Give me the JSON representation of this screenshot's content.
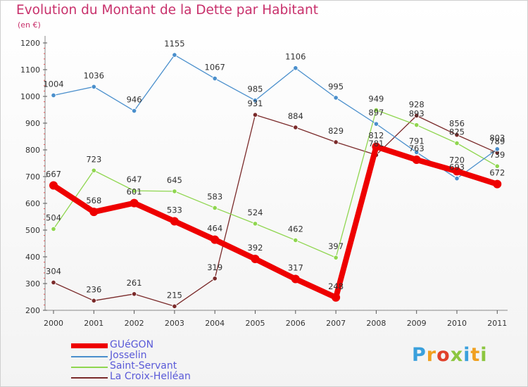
{
  "chart_data": {
    "type": "line",
    "title": "Evolution du Montant de la Dette par Habitant",
    "subtitle": "(en €)",
    "ylim": [
      200,
      1200
    ],
    "yticks": [
      "200",
      "300",
      "400",
      "500",
      "600",
      "700",
      "800",
      "900",
      "1000",
      "1100",
      "1200"
    ],
    "categories": [
      "2000",
      "2001",
      "2002",
      "2003",
      "2004",
      "2005",
      "2006",
      "2007",
      "2008",
      "2009",
      "2010",
      "2011"
    ],
    "grid": false,
    "legend_position": "bottom-left",
    "series": [
      {
        "name": "GUéGON",
        "color": "#ee0000",
        "values": [
          667,
          568,
          601,
          533,
          464,
          392,
          317,
          248,
          812,
          763,
          720,
          672
        ],
        "labels": [
          "667",
          "568",
          "601",
          "533",
          "464",
          "392",
          "317",
          "248",
          "812",
          "763",
          "720",
          "672"
        ]
      },
      {
        "name": "Josselin",
        "color": "#4a8fcc",
        "values": [
          1004,
          1036,
          946,
          1155,
          1067,
          985,
          1106,
          995,
          897,
          791,
          693,
          803
        ],
        "labels": [
          "1004",
          "1036",
          "946",
          "1155",
          "1067",
          "985",
          "1106",
          "995",
          "897",
          "791",
          "693",
          "803"
        ]
      },
      {
        "name": "Saint-Servant",
        "color": "#8fd64f",
        "values": [
          504,
          723,
          647,
          645,
          583,
          524,
          462,
          397,
          949,
          893,
          825,
          739
        ],
        "labels": [
          "504",
          "723",
          "647",
          "645",
          "583",
          "524",
          "462",
          "397",
          "949",
          "893",
          "825",
          "739"
        ]
      },
      {
        "name": "La Croix-Helléan",
        "color": "#7a2a2a",
        "values": [
          304,
          236,
          261,
          215,
          319,
          931,
          884,
          829,
          781,
          928,
          856,
          789
        ],
        "labels": [
          "304",
          "236",
          "261",
          "215",
          "319",
          "931",
          "884",
          "829",
          "781",
          "928",
          "856",
          "789"
        ]
      }
    ]
  },
  "brand": {
    "text": "Proxiti"
  }
}
